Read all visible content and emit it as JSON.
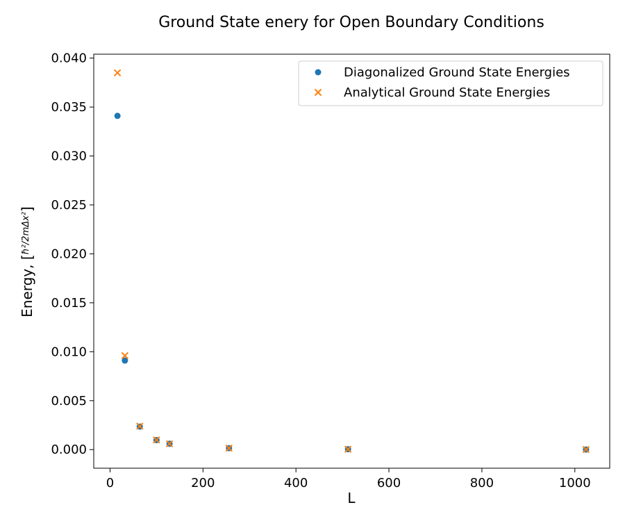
{
  "chart_data": {
    "type": "scatter",
    "title": "Ground State enery for Open Boundary Conditions",
    "xlabel": "L",
    "ylabel": "Energy, [ħ²/2mΔx²]",
    "xlim": [
      -35,
      1075
    ],
    "ylim": [
      -0.0019,
      0.0404
    ],
    "x_ticks": [
      0,
      200,
      400,
      600,
      800,
      1000
    ],
    "x_tick_labels": [
      "0",
      "200",
      "400",
      "600",
      "800",
      "1000"
    ],
    "y_ticks": [
      0.0,
      0.005,
      0.01,
      0.015,
      0.02,
      0.025,
      0.03,
      0.035,
      0.04
    ],
    "y_tick_labels": [
      "0.000",
      "0.005",
      "0.010",
      "0.015",
      "0.020",
      "0.025",
      "0.030",
      "0.035",
      "0.040"
    ],
    "grid": false,
    "legend_position": "top-right",
    "series": [
      {
        "name": "Diagonalized Ground State Energies",
        "marker": "circle",
        "color": "#1f77b4",
        "x": [
          16,
          32,
          64,
          100,
          128,
          256,
          512,
          1024
        ],
        "y": [
          0.0341,
          0.0091,
          0.00235,
          0.00097,
          0.0006,
          0.00015,
          4e-05,
          1e-05
        ]
      },
      {
        "name": "Analytical Ground State Energies",
        "marker": "x",
        "color": "#ff7f0e",
        "x": [
          16,
          32,
          64,
          100,
          128,
          256,
          512,
          1024
        ],
        "y": [
          0.0385,
          0.0096,
          0.0024,
          0.00099,
          0.0006,
          0.00015,
          4e-05,
          1e-05
        ]
      }
    ]
  }
}
